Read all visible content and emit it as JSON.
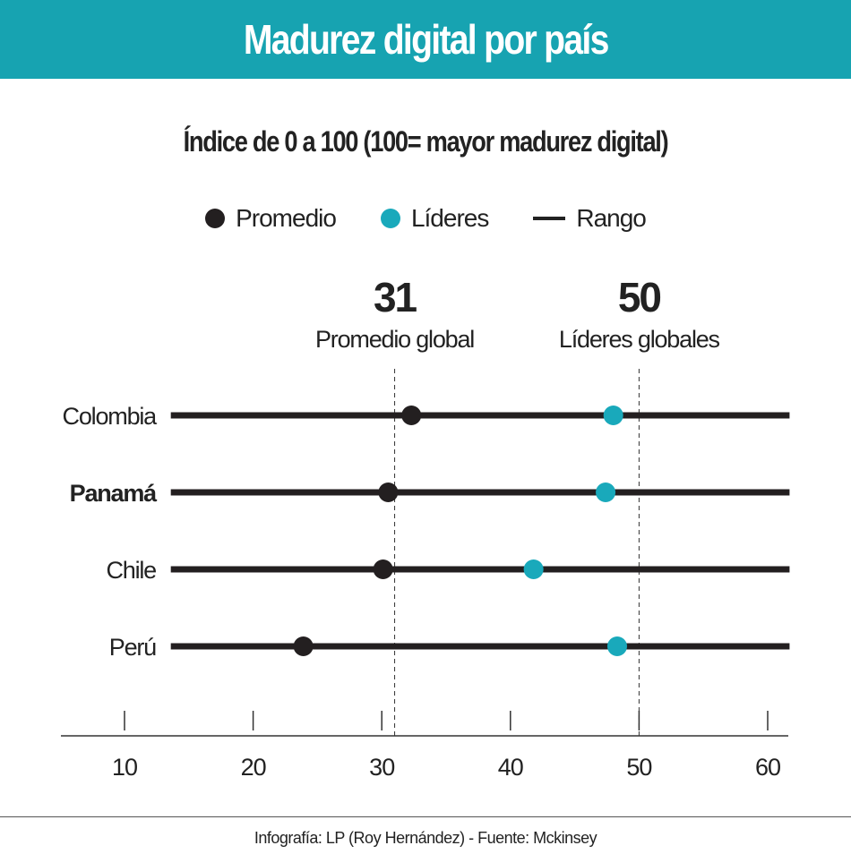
{
  "chart_data": {
    "type": "dot-range",
    "title": "Madurez digital por país",
    "subtitle": "Índice de 0 a 100 (100= mayor madurez digital)",
    "legend": [
      {
        "label": "Promedio",
        "color": "#231f20",
        "shape": "dot"
      },
      {
        "label": "Líderes",
        "color": "#19a9bb",
        "shape": "dot"
      },
      {
        "label": "Rango",
        "color": "#231f20",
        "shape": "line"
      }
    ],
    "categories": [
      "Colombia",
      "Panamá",
      "Chile",
      "Perú"
    ],
    "highlighted_category": "Panamá",
    "series": [
      {
        "name": "Promedio",
        "values": [
          32.3,
          30.5,
          30.1,
          23.9
        ]
      },
      {
        "name": "Líderes",
        "values": [
          48.0,
          47.4,
          41.8,
          48.3
        ]
      }
    ],
    "range": [
      [
        13.6,
        61.7
      ],
      [
        13.6,
        61.7
      ],
      [
        13.6,
        61.7
      ],
      [
        13.6,
        61.7
      ]
    ],
    "reference_lines": [
      {
        "value": 31,
        "value_label": "31",
        "label": "Promedio global"
      },
      {
        "value": 50,
        "value_label": "50",
        "label": "Líderes globales"
      }
    ],
    "x_ticks": [
      10,
      20,
      30,
      40,
      50,
      60
    ],
    "xlim": [
      5,
      62
    ],
    "grid": false
  },
  "footer": "Infografía: LP (Roy Hernández) - Fuente: Mckinsey",
  "colors": {
    "header": "#17a3b1",
    "leader": "#19a9bb",
    "average": "#231f20"
  }
}
